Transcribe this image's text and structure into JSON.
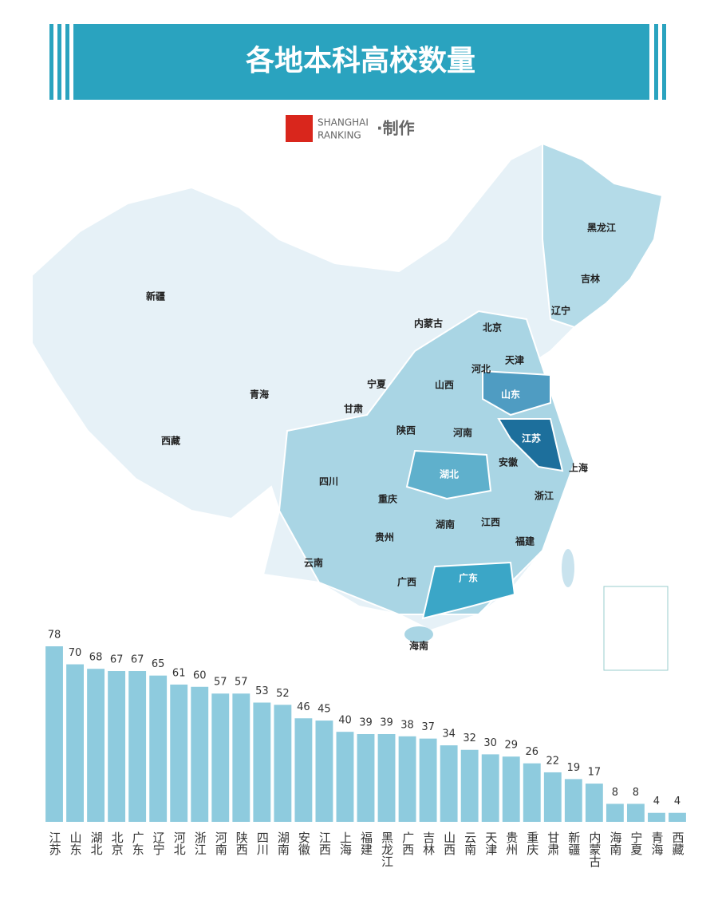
{
  "chart_data": {
    "type": "bar",
    "title": "各地本科高校数量",
    "color": "#8ecbde",
    "categories": [
      "江苏",
      "山东",
      "湖北",
      "北京",
      "广东",
      "辽宁",
      "河北",
      "浙江",
      "河南",
      "陕西",
      "四川",
      "湖南",
      "安徽",
      "江西",
      "上海",
      "福建",
      "黑龙江",
      "广西",
      "吉林",
      "山西",
      "云南",
      "天津",
      "贵州",
      "重庆",
      "甘肃",
      "新疆",
      "内蒙古",
      "海南",
      "宁夏",
      "青海",
      "西藏"
    ],
    "values": [
      78,
      70,
      68,
      67,
      67,
      65,
      61,
      60,
      57,
      57,
      53,
      52,
      46,
      45,
      40,
      39,
      39,
      38,
      37,
      34,
      32,
      30,
      29,
      26,
      22,
      19,
      17,
      8,
      8,
      4,
      4
    ]
  },
  "credit": {
    "line1": "SHANGHAI",
    "line2": "RANKING",
    "suffix": "·制作"
  },
  "map": {
    "labels": [
      "新疆",
      "西藏",
      "青海",
      "甘肃",
      "宁夏",
      "内蒙古",
      "黑龙江",
      "吉林",
      "辽宁",
      "北京",
      "天津",
      "河北",
      "山西",
      "山东",
      "陕西",
      "河南",
      "江苏",
      "安徽",
      "上海",
      "湖北",
      "四川",
      "重庆",
      "浙江",
      "湖南",
      "江西",
      "贵州",
      "福建",
      "云南",
      "广西",
      "广东",
      "海南"
    ]
  }
}
